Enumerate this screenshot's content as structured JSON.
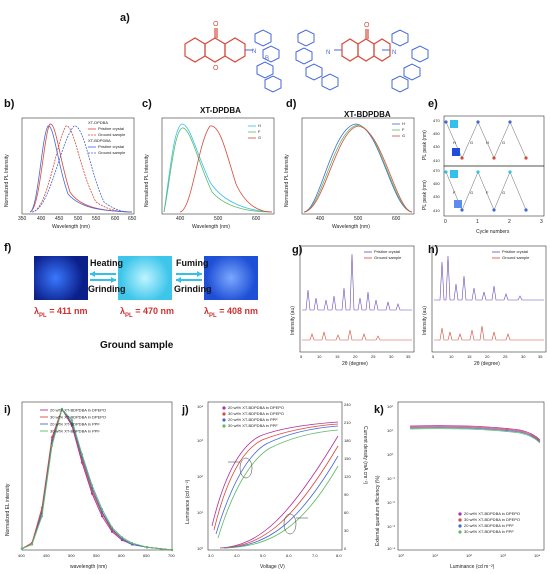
{
  "labels": {
    "a": "a)",
    "b": "b)",
    "c": "c)",
    "d": "d)",
    "e": "e)",
    "f": "f)",
    "g": "g)",
    "h": "h)",
    "i": "i)",
    "j": "j)",
    "k": "k)"
  },
  "molecules": {
    "mol1": "XT-DPDBA",
    "mol2": "XT-BDPDBA"
  },
  "panel_b": {
    "ylabel": "Normalized PL Intensity",
    "xlabel": "Wavelength (nm)",
    "legend_group1": "XT-DPDBA",
    "legend_group2": "XT-BDPDBA",
    "legend_items": [
      "Pristine crystal",
      "Ground sample",
      "Pristine crystal",
      "Ground sample"
    ],
    "xticks": [
      "350",
      "400",
      "450",
      "500",
      "550",
      "600",
      "650"
    ]
  },
  "panel_c": {
    "ylabel": "Normalized PL Intensity",
    "xlabel": "Wavelength (nm)",
    "legend": [
      "H",
      "F",
      "G"
    ],
    "xticks": [
      "400",
      "500",
      "600"
    ]
  },
  "panel_d": {
    "ylabel": "Normalized PL Intensity",
    "xlabel": "Wavelength (nm)",
    "legend": [
      "H",
      "F",
      "G"
    ],
    "xticks": [
      "400",
      "500",
      "600"
    ]
  },
  "panel_e": {
    "ylabel_top": "PL peak (nm)",
    "ylabel_bottom": "PL peak (nm)",
    "xlabel": "Cycle numbers",
    "yticks": [
      "470",
      "450",
      "430",
      "410"
    ],
    "xticks": [
      "0",
      "1",
      "2",
      "3"
    ],
    "letters_top": [
      "H",
      "G",
      "H",
      "G"
    ],
    "letters_bottom": [
      "F",
      "G",
      "F",
      "G"
    ]
  },
  "panel_f": {
    "heating": "Heating",
    "grinding1": "Grinding",
    "fuming": "Fuming",
    "grinding2": "Grinding",
    "lambda_symbol": "λ",
    "lambda_sub": "PL",
    "lambda1": "= 411 nm",
    "lambda2": "= 470 nm",
    "lambda3": "= 408 nm",
    "caption": "Ground sample"
  },
  "panel_g": {
    "ylabel": "Intensity (au)",
    "xlabel": "2θ (degree)",
    "legend": [
      "Pristine crystal",
      "Ground sample"
    ],
    "xticks": [
      "5",
      "10",
      "15",
      "20",
      "25",
      "30",
      "35"
    ]
  },
  "panel_h": {
    "ylabel": "Intensity (au)",
    "xlabel": "2θ (degree)",
    "legend": [
      "Pristine crystal",
      "Ground sample"
    ],
    "xticks": [
      "5",
      "10",
      "15",
      "20",
      "25",
      "30",
      "35"
    ]
  },
  "panel_i": {
    "ylabel": "Normalized EL intensity",
    "xlabel": "wavelength (nm)",
    "legend": [
      "20 wt% XT-BDPDBA in DPEPO",
      "30 wt% XT-BDPDBA in DPEPO",
      "20 wt% XT-BDPDBA in PPF",
      "30 wt% XT-BDPDBA in PPF"
    ],
    "xticks": [
      "400",
      "450",
      "500",
      "550",
      "600",
      "650",
      "700"
    ]
  },
  "panel_j": {
    "ylabel": "Luminance (cd m⁻²)",
    "ylabel2": "Current density (mA cm⁻²)",
    "xlabel": "Voltage (V)",
    "legend": [
      "20 wt% XT-BDPDBA in DPEPO",
      "30 wt% XT-BDPDBA in DPEPO",
      "20 wt% XT-BDPDBA in PPF",
      "30 wt% XT-BDPDBA in PPF"
    ],
    "xticks": [
      "3.0",
      "4.0",
      "5.0",
      "6.0",
      "7.0",
      "8.0"
    ],
    "yticks_left": [
      "10⁰",
      "10¹",
      "10²",
      "10³",
      "10⁴"
    ],
    "yticks_right": [
      "0",
      "30",
      "60",
      "90",
      "120",
      "150",
      "180",
      "210",
      "240"
    ]
  },
  "panel_k": {
    "ylabel": "External quantum efficiency (%)",
    "xlabel": "Luminance (cd m⁻²)",
    "legend": [
      "20 wt% XT-BDPDBA in DPEPO",
      "30 wt% XT-BDPDBA in DPEPO",
      "20 wt% XT-BDPDBA in PPF",
      "30 wt% XT-BDPDBA in PPF"
    ],
    "xticks": [
      "10⁰",
      "10¹",
      "10²",
      "10³",
      "10⁴"
    ],
    "yticks": [
      "10²",
      "10¹",
      "10⁰",
      "10⁻¹",
      "10⁻²",
      "10⁻³",
      "10⁻⁴"
    ]
  },
  "colors": {
    "red": "#d64a3a",
    "blue": "#4468d8",
    "green": "#5dbb63",
    "magenta": "#b0309c",
    "purple": "#6a4ab8",
    "accentRed": "#d03030",
    "uvBlue": "#1f4fd6",
    "cyan": "#33c0ea"
  },
  "chart_data": [
    {
      "panel": "i",
      "type": "line",
      "x": [
        400,
        420,
        440,
        460,
        480,
        500,
        520,
        540,
        560,
        580,
        600,
        620,
        650,
        700
      ],
      "series": [
        {
          "name": "20 wt% XT-BDPDBA in DPEPO",
          "values": [
            0.01,
            0.05,
            0.28,
            0.78,
            1.0,
            0.88,
            0.62,
            0.4,
            0.24,
            0.13,
            0.07,
            0.04,
            0.02,
            0.0
          ]
        },
        {
          "name": "30 wt% XT-BDPDBA in DPEPO",
          "values": [
            0.01,
            0.05,
            0.3,
            0.8,
            1.0,
            0.89,
            0.64,
            0.42,
            0.26,
            0.14,
            0.08,
            0.04,
            0.02,
            0.0
          ]
        },
        {
          "name": "20 wt% XT-BDPDBA in PPF",
          "values": [
            0.01,
            0.04,
            0.26,
            0.76,
            1.0,
            0.9,
            0.66,
            0.44,
            0.27,
            0.15,
            0.08,
            0.04,
            0.02,
            0.0
          ]
        },
        {
          "name": "30 wt% XT-BDPDBA in PPF",
          "values": [
            0.01,
            0.04,
            0.24,
            0.74,
            1.0,
            0.92,
            0.68,
            0.46,
            0.29,
            0.16,
            0.09,
            0.05,
            0.02,
            0.0
          ]
        }
      ],
      "xlim": [
        400,
        700
      ],
      "ylim": [
        0,
        1.05
      ]
    },
    {
      "panel": "e",
      "type": "scatter",
      "x": [
        0,
        0.5,
        1,
        1.5,
        2,
        2.5
      ],
      "series": [
        {
          "values": [
            470,
            411,
            470,
            411,
            470,
            411
          ]
        },
        {
          "values": [
            470,
            408,
            470,
            408,
            470,
            408
          ]
        }
      ],
      "ylim": [
        400,
        480
      ],
      "xlim": [
        0,
        3
      ]
    }
  ]
}
